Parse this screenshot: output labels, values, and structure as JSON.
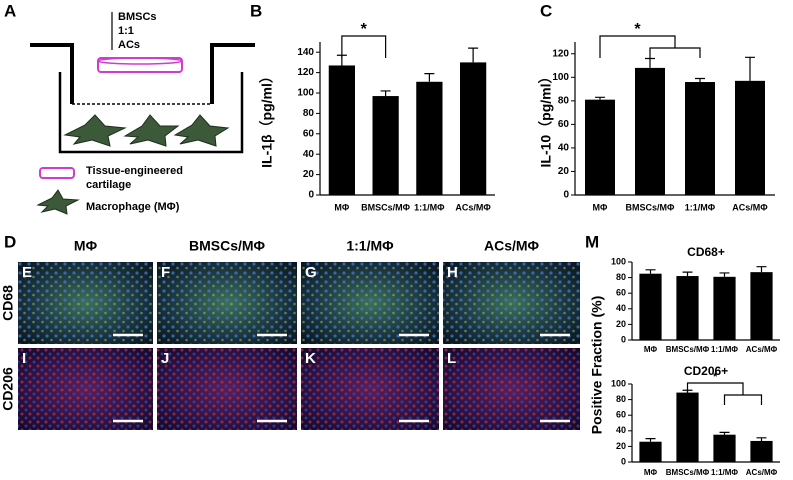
{
  "panels": {
    "a": "A",
    "b": "B",
    "c": "C",
    "d": "D",
    "m": "M"
  },
  "diagram": {
    "insert_labels": [
      "BMSCs",
      "1:1",
      "ACs"
    ],
    "legend": [
      "Tissue-engineered",
      "cartilage",
      "Macrophage (MΦ)"
    ]
  },
  "microscopy": {
    "columns": [
      "MΦ",
      "BMSCs/MΦ",
      "1:1/MΦ",
      "ACs/MΦ"
    ],
    "rows": [
      "CD68",
      "CD206"
    ],
    "letters": [
      [
        "E",
        "F",
        "G",
        "H"
      ],
      [
        "I",
        "J",
        "K",
        "L"
      ]
    ]
  },
  "panel_m_ylabel": "Positive Fraction (%)",
  "chart_data": [
    {
      "type": "bar",
      "ylabel": "IL-1β（pg/ml）",
      "categories": [
        "MΦ",
        "BMSCs/MΦ",
        "1:1/MΦ",
        "ACs/MΦ"
      ],
      "values": [
        127,
        97,
        111,
        130
      ],
      "errors": [
        10,
        5,
        8,
        14
      ],
      "color": "#000000",
      "ylim": [
        0,
        150
      ],
      "yticks": [
        0,
        20,
        40,
        60,
        80,
        100,
        120,
        140
      ],
      "annotations": [
        "*"
      ]
    },
    {
      "type": "bar",
      "ylabel": "IL-10（pg/ml）",
      "categories": [
        "MΦ",
        "BMSCs/MΦ",
        "1:1/MΦ",
        "ACs/MΦ"
      ],
      "values": [
        81,
        108,
        96,
        97
      ],
      "errors": [
        2,
        8,
        3,
        20
      ],
      "color": "#000000",
      "ylim": [
        0,
        130
      ],
      "yticks": [
        0,
        20,
        40,
        60,
        80,
        100,
        120
      ],
      "annotations": [
        "*"
      ]
    },
    {
      "type": "bar",
      "title": "CD68+",
      "categories": [
        "MΦ",
        "BMSCs/MΦ",
        "1:1/MΦ",
        "ACs/MΦ"
      ],
      "values": [
        85,
        82,
        81,
        87
      ],
      "errors": [
        5,
        5,
        5,
        7
      ],
      "color": "#000000",
      "ylim": [
        0,
        100
      ],
      "yticks": [
        0,
        20,
        40,
        60,
        80,
        100
      ]
    },
    {
      "type": "bar",
      "title": "CD206+",
      "categories": [
        "MΦ",
        "BMSCs/MΦ",
        "1:1/MΦ",
        "ACs/MΦ"
      ],
      "values": [
        26,
        89,
        35,
        27
      ],
      "errors": [
        4,
        3,
        3,
        4
      ],
      "color": "#000000",
      "ylim": [
        0,
        100
      ],
      "yticks": [
        0,
        20,
        40,
        60,
        80,
        100
      ],
      "annotations": [
        "*"
      ]
    }
  ]
}
